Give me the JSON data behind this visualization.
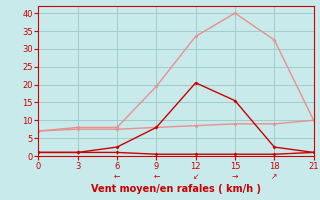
{
  "x": [
    0,
    3,
    6,
    9,
    12,
    15,
    18,
    21
  ],
  "line_gusts": [
    7,
    8,
    8,
    19.5,
    33.5,
    40,
    32.5,
    10
  ],
  "line_mean": [
    1,
    1,
    2.5,
    8,
    20.5,
    15.5,
    2.5,
    1
  ],
  "line_flat_light": [
    7,
    7.5,
    7.5,
    8,
    8.5,
    9,
    9,
    10
  ],
  "line_flat_dark": [
    1,
    1,
    1,
    0.5,
    0.5,
    0.5,
    0.5,
    1
  ],
  "color_light": "#e89090",
  "color_dark": "#cc0000",
  "bg_color": "#c8eaea",
  "grid_color": "#a0cccc",
  "xlabel": "Vent moyen/en rafales ( km/h )",
  "xlabel_color": "#cc0000",
  "yticks": [
    0,
    5,
    10,
    15,
    20,
    25,
    30,
    35,
    40
  ],
  "xticks": [
    0,
    3,
    6,
    9,
    12,
    15,
    18,
    21
  ],
  "ylim": [
    0,
    42
  ],
  "xlim": [
    0,
    21
  ],
  "wind_dirs": [
    "←",
    "←",
    "↙",
    "→",
    "↗"
  ],
  "wind_x": [
    6,
    9,
    12,
    15,
    18
  ]
}
